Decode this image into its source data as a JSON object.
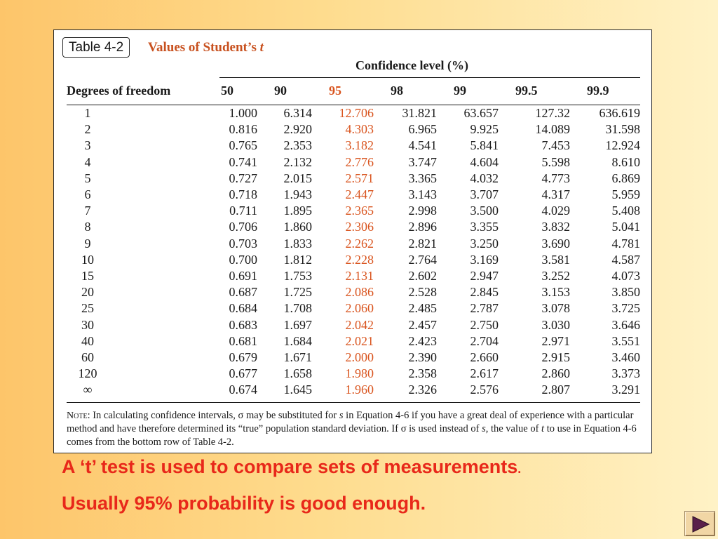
{
  "table": {
    "badge": "Table 4-2",
    "title": "Values of Student’s",
    "title_var": "t",
    "confidence_header": "Confidence level (%)",
    "row_header": "Degrees of freedom",
    "columns": [
      "50",
      "90",
      "95",
      "98",
      "99",
      "99.5",
      "99.9"
    ],
    "highlight_color": "#d9541e",
    "rows": [
      {
        "df": "1",
        "values": [
          "1.000",
          "6.314",
          "12.706",
          "31.821",
          "63.657",
          "127.32",
          "636.619"
        ]
      },
      {
        "df": "2",
        "values": [
          "0.816",
          "2.920",
          "4.303",
          "6.965",
          "9.925",
          "14.089",
          "31.598"
        ]
      },
      {
        "df": "3",
        "values": [
          "0.765",
          "2.353",
          "3.182",
          "4.541",
          "5.841",
          "7.453",
          "12.924"
        ]
      },
      {
        "df": "4",
        "values": [
          "0.741",
          "2.132",
          "2.776",
          "3.747",
          "4.604",
          "5.598",
          "8.610"
        ]
      },
      {
        "df": "5",
        "values": [
          "0.727",
          "2.015",
          "2.571",
          "3.365",
          "4.032",
          "4.773",
          "6.869"
        ]
      },
      {
        "df": "6",
        "values": [
          "0.718",
          "1.943",
          "2.447",
          "3.143",
          "3.707",
          "4.317",
          "5.959"
        ]
      },
      {
        "df": "7",
        "values": [
          "0.711",
          "1.895",
          "2.365",
          "2.998",
          "3.500",
          "4.029",
          "5.408"
        ]
      },
      {
        "df": "8",
        "values": [
          "0.706",
          "1.860",
          "2.306",
          "2.896",
          "3.355",
          "3.832",
          "5.041"
        ]
      },
      {
        "df": "9",
        "values": [
          "0.703",
          "1.833",
          "2.262",
          "2.821",
          "3.250",
          "3.690",
          "4.781"
        ]
      },
      {
        "df": "10",
        "values": [
          "0.700",
          "1.812",
          "2.228",
          "2.764",
          "3.169",
          "3.581",
          "4.587"
        ]
      },
      {
        "df": "15",
        "values": [
          "0.691",
          "1.753",
          "2.131",
          "2.602",
          "2.947",
          "3.252",
          "4.073"
        ]
      },
      {
        "df": "20",
        "values": [
          "0.687",
          "1.725",
          "2.086",
          "2.528",
          "2.845",
          "3.153",
          "3.850"
        ]
      },
      {
        "df": "25",
        "values": [
          "0.684",
          "1.708",
          "2.060",
          "2.485",
          "2.787",
          "3.078",
          "3.725"
        ]
      },
      {
        "df": "30",
        "values": [
          "0.683",
          "1.697",
          "2.042",
          "2.457",
          "2.750",
          "3.030",
          "3.646"
        ]
      },
      {
        "df": "40",
        "values": [
          "0.681",
          "1.684",
          "2.021",
          "2.423",
          "2.704",
          "2.971",
          "3.551"
        ]
      },
      {
        "df": "60",
        "values": [
          "0.679",
          "1.671",
          "2.000",
          "2.390",
          "2.660",
          "2.915",
          "3.460"
        ]
      },
      {
        "df": "120",
        "values": [
          "0.677",
          "1.658",
          "1.980",
          "2.358",
          "2.617",
          "2.860",
          "3.373"
        ]
      },
      {
        "df": "∞",
        "values": [
          "0.674",
          "1.645",
          "1.960",
          "2.326",
          "2.576",
          "2.807",
          "3.291"
        ]
      }
    ],
    "note": {
      "label": "Note",
      "text_1": ": In calculating confidence intervals, σ may be substituted for ",
      "var_s": "s",
      "text_2": " in Equation 4-6 if you have a great deal of experience with a particular method and have therefore determined its “true” population standard deviation. If σ is used instead of ",
      "var_s2": "s",
      "text_3": ", the value of ",
      "var_t": "t",
      "text_4": " to use in Equation 4-6 comes from the bottom row of Table 4-2."
    }
  },
  "caption": {
    "line1": "A ‘t’ test is used to compare sets of measurements",
    "line1_period": ".",
    "line2": "Usually 95% probability is good enough."
  },
  "nav": {
    "next_icon": "play-triangle-icon"
  }
}
